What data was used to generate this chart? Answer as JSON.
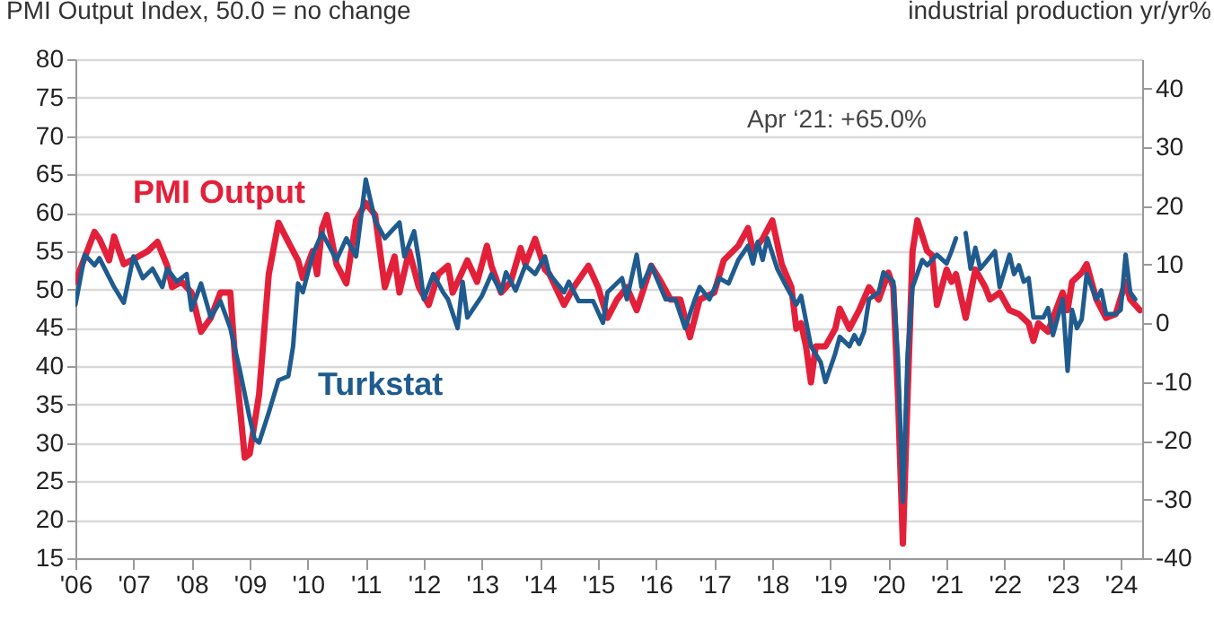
{
  "chart_data": {
    "type": "line",
    "ylabel": "PMI Output Index, 50.0 = no change",
    "y2label": "industrial production yr/yr%",
    "annotations": [
      "Apr ‘21: +65.0%"
    ],
    "xlim": [
      "2006-01-01",
      "2024-05-15"
    ],
    "xticks": [
      {
        "value": "2006",
        "label": "'06"
      },
      {
        "value": "2007",
        "label": "'07"
      },
      {
        "value": "2008",
        "label": "'08"
      },
      {
        "value": "2009",
        "label": "'09"
      },
      {
        "value": "2010",
        "label": "'10"
      },
      {
        "value": "2011",
        "label": "'11"
      },
      {
        "value": "2012",
        "label": "'12"
      },
      {
        "value": "2013",
        "label": "'13"
      },
      {
        "value": "2014",
        "label": "'14"
      },
      {
        "value": "2015",
        "label": "'15"
      },
      {
        "value": "2016",
        "label": "'16"
      },
      {
        "value": "2017",
        "label": "'17"
      },
      {
        "value": "2018",
        "label": "'18"
      },
      {
        "value": "2019",
        "label": "'19"
      },
      {
        "value": "2020",
        "label": "'20"
      },
      {
        "value": "2021",
        "label": "'21"
      },
      {
        "value": "2022",
        "label": "'22"
      },
      {
        "value": "2023",
        "label": "'23"
      },
      {
        "value": "2024",
        "label": "'24"
      }
    ],
    "ylim": [
      15,
      80
    ],
    "yticks": [
      15,
      20,
      25,
      30,
      35,
      40,
      45,
      50,
      55,
      60,
      65,
      70,
      75,
      80
    ],
    "y2lim": [
      -40,
      45
    ],
    "y2ticks": [
      -40,
      -30,
      -20,
      -10,
      0,
      10,
      20,
      30,
      40
    ],
    "grid": "y",
    "series": [
      {
        "name": "PMI Output",
        "color": "#e3203a",
        "x": [
          "2006-01",
          "2006-05",
          "2006-06",
          "2006-08",
          "2006-09",
          "2006-11",
          "2007-02",
          "2007-04",
          "2007-06",
          "2007-08",
          "2007-09",
          "2007-11",
          "2008-01",
          "2008-03",
          "2008-05",
          "2008-07",
          "2008-09",
          "2008-10",
          "2008-11",
          "2008-12",
          "2009-01",
          "2009-03",
          "2009-05",
          "2009-07",
          "2009-09",
          "2009-11",
          "2009-12",
          "2010-02",
          "2010-03",
          "2010-04",
          "2010-05",
          "2010-07",
          "2010-09",
          "2010-11",
          "2011-01",
          "2011-03",
          "2011-05",
          "2011-07",
          "2011-08",
          "2011-10",
          "2011-12",
          "2012-02",
          "2012-04",
          "2012-06",
          "2012-07",
          "2012-10",
          "2012-12",
          "2013-02",
          "2013-03",
          "2013-05",
          "2013-07",
          "2013-09",
          "2013-10",
          "2013-12",
          "2014-02",
          "2014-03",
          "2014-06",
          "2014-08",
          "2014-11",
          "2015-01",
          "2015-03",
          "2015-05",
          "2015-07",
          "2015-09",
          "2015-12",
          "2016-02",
          "2016-04",
          "2016-06",
          "2016-08",
          "2016-10",
          "2017-01",
          "2017-03",
          "2017-06",
          "2017-08",
          "2017-09",
          "2017-11",
          "2018-01",
          "2018-03",
          "2018-05",
          "2018-06",
          "2018-07",
          "2018-08",
          "2018-09",
          "2018-10",
          "2018-12",
          "2019-02",
          "2019-03",
          "2019-05",
          "2019-07",
          "2019-09",
          "2019-11",
          "2020-01",
          "2020-02",
          "2020-03",
          "2020-04",
          "2020-05",
          "2020-06",
          "2020-07",
          "2020-09",
          "2020-10",
          "2020-11",
          "2021-01",
          "2021-02",
          "2021-03",
          "2021-05",
          "2021-07",
          "2021-09",
          "2021-10",
          "2021-12",
          "2022-02",
          "2022-04",
          "2022-06",
          "2022-07",
          "2022-08",
          "2022-10",
          "2022-11",
          "2023-01",
          "2023-02",
          "2023-03",
          "2023-05",
          "2023-06",
          "2023-08",
          "2023-10",
          "2023-12",
          "2024-02",
          "2024-03",
          "2024-05"
        ],
        "values": [
          51,
          57.5,
          56.6,
          53.8,
          56.9,
          53.3,
          54.3,
          55,
          56.2,
          53.1,
          50.3,
          51,
          49.6,
          44.5,
          46.3,
          49.6,
          49.6,
          41,
          34.6,
          28.1,
          28.6,
          36.3,
          52,
          58.7,
          56.2,
          53.8,
          51.5,
          55,
          52,
          58,
          59.7,
          53.3,
          50.8,
          59,
          61.3,
          59.7,
          50.3,
          54.3,
          49.6,
          55,
          50.3,
          48,
          52,
          53.1,
          49.6,
          53.8,
          51,
          55.7,
          53.1,
          49.6,
          51,
          55.4,
          53.3,
          56.6,
          52.6,
          52,
          48,
          50.3,
          53.1,
          50.3,
          46.3,
          48.7,
          50.3,
          47.3,
          53.1,
          51,
          48.7,
          48.7,
          43.8,
          48.7,
          49.6,
          53.8,
          55.7,
          58,
          55,
          56.6,
          59,
          53.3,
          50.3,
          44.9,
          45.6,
          42.6,
          37.9,
          42.6,
          42.6,
          44.9,
          47.5,
          44.9,
          47.3,
          50.3,
          48.7,
          52.2,
          50.3,
          36.3,
          16.9,
          36.3,
          55,
          59,
          55,
          54.5,
          48,
          52.6,
          51,
          52,
          46.3,
          52.6,
          50.3,
          48.7,
          49.6,
          47.3,
          46.8,
          45.6,
          43.3,
          45.6,
          44.5,
          46.3,
          49.6,
          47.3,
          51,
          52.2,
          53.3,
          48.7,
          46.3,
          46.8,
          51,
          48.7,
          47.3
        ]
      },
      {
        "name": "Turkstat",
        "color": "#1f5b8e",
        "axis": "y2",
        "x": [
          "2006-01",
          "2006-03",
          "2006-05",
          "2006-06",
          "2006-09",
          "2006-11",
          "2007-01",
          "2007-03",
          "2007-05",
          "2007-07",
          "2007-08",
          "2007-10",
          "2007-12",
          "2008-01",
          "2008-03",
          "2008-05",
          "2008-07",
          "2008-09",
          "2008-11",
          "2009-01",
          "2009-02",
          "2009-03",
          "2009-05",
          "2009-07",
          "2009-09",
          "2009-10",
          "2009-11",
          "2009-12",
          "2010-02",
          "2010-04",
          "2010-05",
          "2010-07",
          "2010-09",
          "2010-11",
          "2011-01",
          "2011-03",
          "2011-05",
          "2011-08",
          "2011-09",
          "2011-11",
          "2011-12",
          "2012-01",
          "2012-03",
          "2012-05",
          "2012-06",
          "2012-08",
          "2012-09",
          "2012-10",
          "2013-01",
          "2013-03",
          "2013-05",
          "2013-06",
          "2013-08",
          "2013-10",
          "2013-12",
          "2014-02",
          "2014-03",
          "2014-06",
          "2014-07",
          "2014-09",
          "2014-12",
          "2015-02",
          "2015-03",
          "2015-06",
          "2015-07",
          "2015-09",
          "2015-10",
          "2015-12",
          "2016-03",
          "2016-05",
          "2016-07",
          "2016-09",
          "2016-10",
          "2016-12",
          "2017-02",
          "2017-04",
          "2017-06",
          "2017-08",
          "2017-09",
          "2017-10",
          "2017-11",
          "2017-12",
          "2018-02",
          "2018-04",
          "2018-06",
          "2018-07",
          "2018-09",
          "2018-11",
          "2018-12",
          "2019-02",
          "2019-03",
          "2019-05",
          "2019-06",
          "2019-07",
          "2019-08",
          "2019-09",
          "2019-11",
          "2019-12",
          "2020-02",
          "2020-03",
          "2020-04",
          "2020-05",
          "2020-06",
          "2020-08",
          "2020-09",
          "2020-11",
          "2021-01",
          "2021-02",
          "2021-03",
          "2021-04",
          "2021-05",
          "2021-06",
          "2021-07",
          "2021-08",
          "2021-11",
          "2021-12",
          "2022-02",
          "2022-03",
          "2022-04",
          "2022-05",
          "2022-06",
          "2022-07",
          "2022-09",
          "2022-10",
          "2022-11",
          "2023-01",
          "2023-02",
          "2023-03",
          "2023-04",
          "2023-05",
          "2023-06",
          "2023-08",
          "2023-09",
          "2023-10",
          "2023-12",
          "2024-01",
          "2024-02",
          "2024-03",
          "2024-04"
        ],
        "values": [
          3.2,
          11.7,
          9.9,
          11.1,
          6.2,
          3.5,
          11.4,
          7.7,
          9.3,
          6.2,
          9.3,
          7.1,
          8.4,
          2.3,
          6.8,
          1,
          3.8,
          -0.8,
          -8.1,
          -16.1,
          -19.7,
          -20.3,
          -15.2,
          -9.7,
          -9,
          -3.9,
          6.8,
          5.3,
          11.7,
          15.4,
          13.9,
          10.8,
          14.5,
          11.4,
          24.5,
          17.5,
          14.5,
          17.2,
          11.4,
          15.7,
          10.8,
          4.1,
          8.4,
          5.3,
          4.1,
          -0.8,
          7.1,
          1,
          4.7,
          8.4,
          5.3,
          8.7,
          5.6,
          9.9,
          8.4,
          11.4,
          8.4,
          5.3,
          7.1,
          3.8,
          3.8,
          0.1,
          5.3,
          7.7,
          4.1,
          11.7,
          6.2,
          9.9,
          4.1,
          4.1,
          -0.8,
          4.1,
          6.2,
          4.1,
          7.7,
          6.8,
          10.8,
          13.2,
          10.2,
          13.9,
          10.8,
          14.5,
          9.3,
          6.2,
          3.2,
          4.7,
          -3.9,
          -6.6,
          -10,
          -5.1,
          -2.3,
          -3.9,
          -2,
          -3.5,
          -1.4,
          4.1,
          5.3,
          8.7,
          7.1,
          -6,
          -30.4,
          -5.1,
          6.2,
          10.8,
          9.9,
          11.7,
          10.2,
          12.3,
          14.5,
          null,
          15.4,
          9.3,
          12.9,
          9.3,
          12.3,
          6.2,
          11.7,
          8.4,
          9.9,
          7.1,
          7.7,
          1,
          1,
          2.6,
          -2,
          4.1,
          -8.1,
          2.3,
          -0.8,
          0.7,
          8.4,
          4.1,
          5.6,
          1.6,
          1.6,
          2.3,
          11.7,
          5.3,
          4.1
        ]
      }
    ]
  }
}
